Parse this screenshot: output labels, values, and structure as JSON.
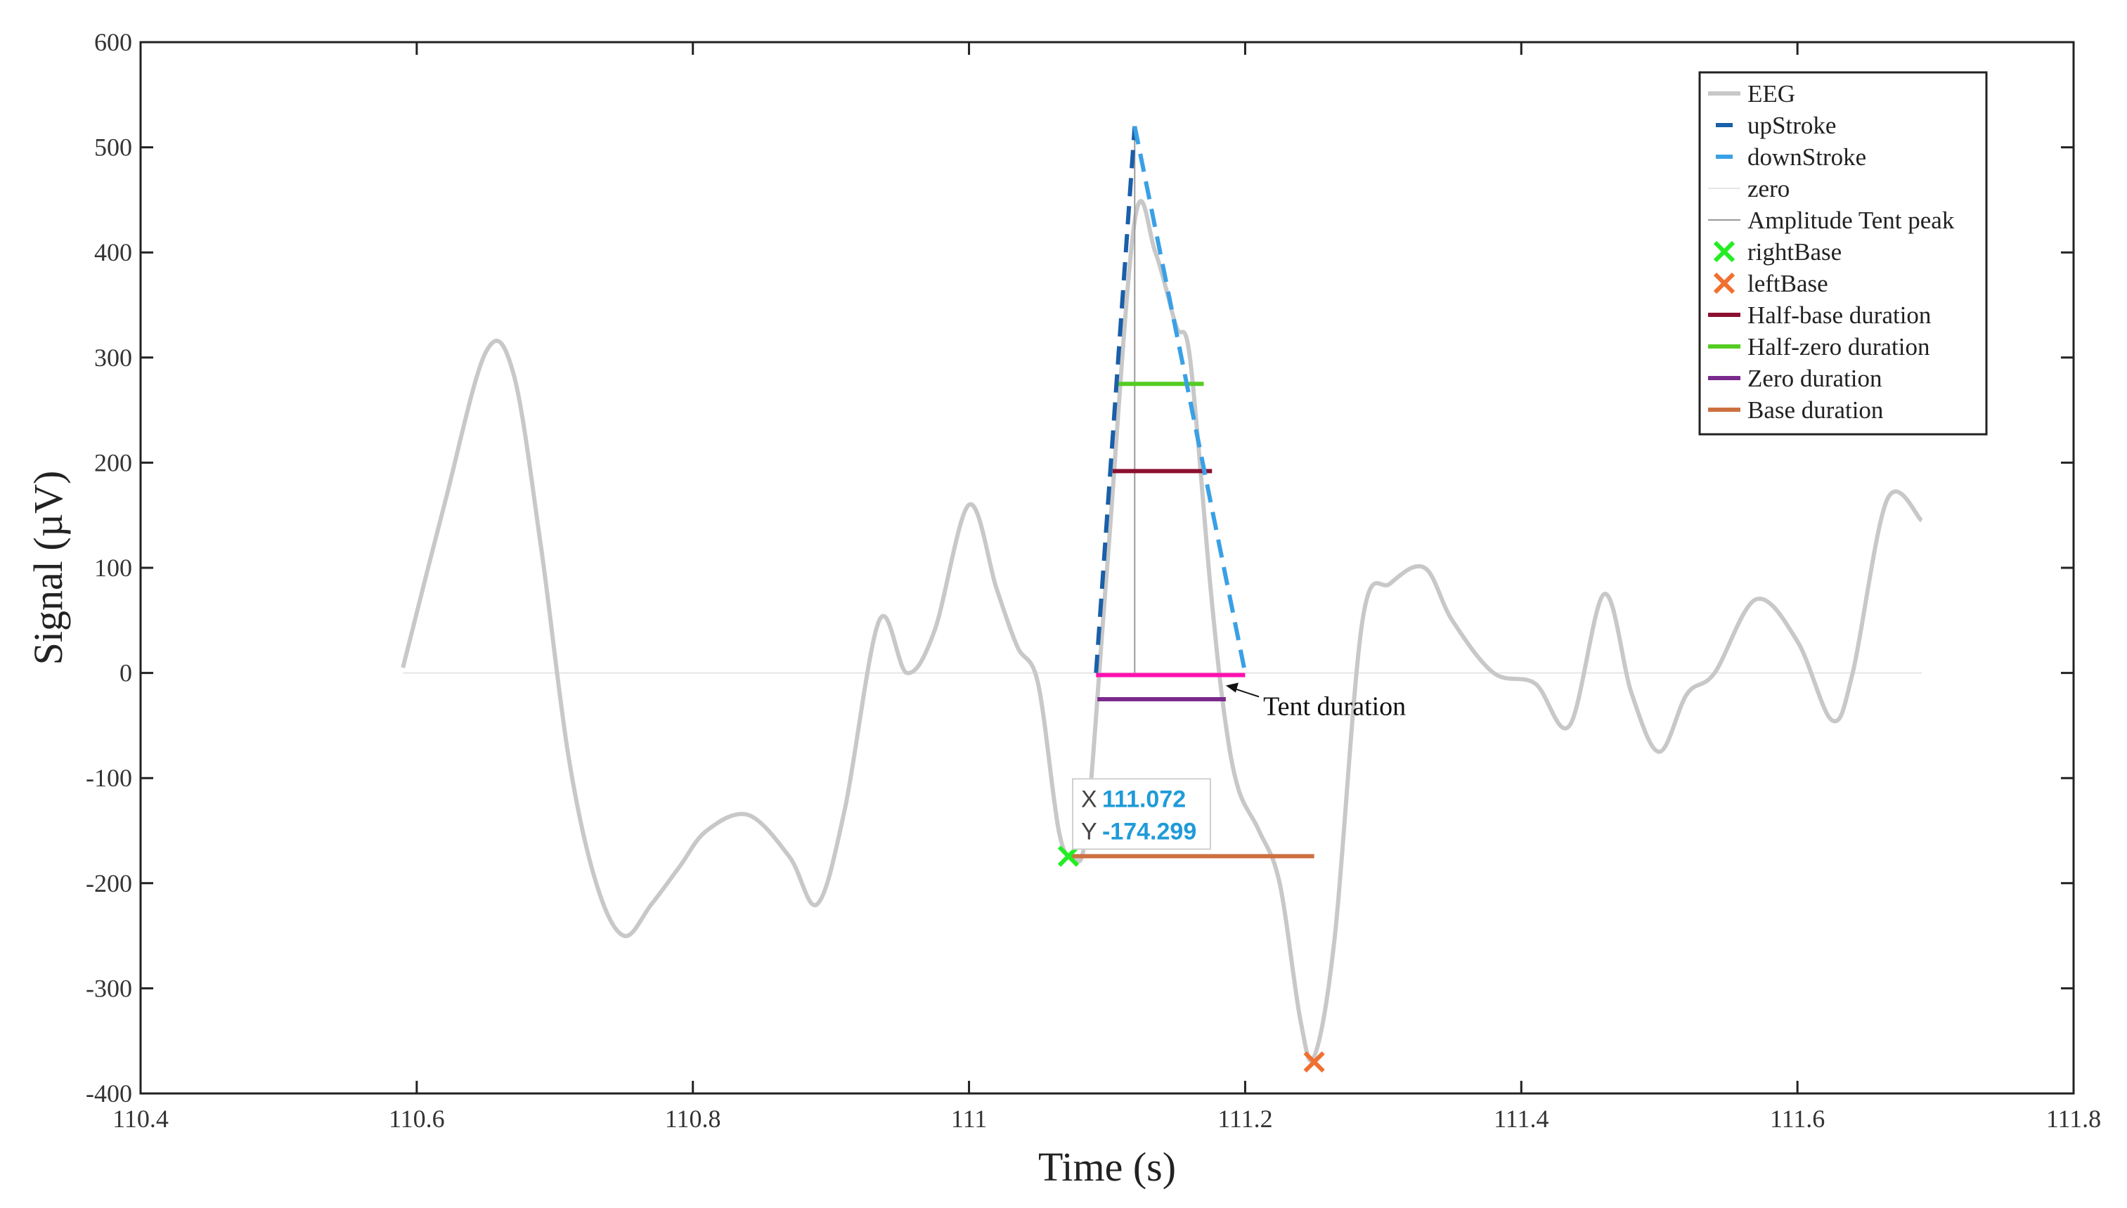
{
  "chart_data": {
    "type": "line",
    "title": "",
    "xlabel": "Time (s)",
    "ylabel": "Signal (µV)",
    "xlim": [
      110.4,
      111.8
    ],
    "ylim": [
      -400,
      600
    ],
    "x_ticks": [
      "110.4",
      "110.6",
      "110.8",
      "111",
      "111.2",
      "111.4",
      "111.6",
      "111.8"
    ],
    "y_ticks": [
      "600",
      "500",
      "400",
      "300",
      "200",
      "100",
      "0",
      "-100",
      "-200",
      "-300",
      "-400"
    ],
    "grid": false,
    "legend_position": "top-right",
    "series": [
      {
        "name": "EEG",
        "color": "#c8c8c8",
        "style": "solid",
        "points": [
          [
            110.59,
            5
          ],
          [
            110.62,
            160
          ],
          [
            110.65,
            305
          ],
          [
            110.67,
            285
          ],
          [
            110.69,
            120
          ],
          [
            110.71,
            -80
          ],
          [
            110.73,
            -200
          ],
          [
            110.75,
            -250
          ],
          [
            110.77,
            -220
          ],
          [
            110.79,
            -185
          ],
          [
            110.81,
            -150
          ],
          [
            110.84,
            -135
          ],
          [
            110.87,
            -175
          ],
          [
            110.89,
            -220
          ],
          [
            110.91,
            -130
          ],
          [
            110.935,
            50
          ],
          [
            110.955,
            0
          ],
          [
            110.975,
            40
          ],
          [
            111.0,
            160
          ],
          [
            111.02,
            80
          ],
          [
            111.035,
            25
          ],
          [
            111.05,
            -10
          ],
          [
            111.065,
            -150
          ],
          [
            111.075,
            -174
          ],
          [
            111.085,
            -150
          ],
          [
            111.1,
            100
          ],
          [
            111.12,
            430
          ],
          [
            111.135,
            400
          ],
          [
            111.15,
            330
          ],
          [
            111.16,
            300
          ],
          [
            111.175,
            80
          ],
          [
            111.185,
            -40
          ],
          [
            111.195,
            -110
          ],
          [
            111.21,
            -150
          ],
          [
            111.225,
            -200
          ],
          [
            111.24,
            -330
          ],
          [
            111.25,
            -365
          ],
          [
            111.265,
            -250
          ],
          [
            111.285,
            50
          ],
          [
            111.305,
            85
          ],
          [
            111.33,
            100
          ],
          [
            111.35,
            50
          ],
          [
            111.38,
            0
          ],
          [
            111.41,
            -10
          ],
          [
            111.435,
            -50
          ],
          [
            111.46,
            75
          ],
          [
            111.48,
            -20
          ],
          [
            111.5,
            -75
          ],
          [
            111.52,
            -20
          ],
          [
            111.54,
            0
          ],
          [
            111.57,
            70
          ],
          [
            111.6,
            30
          ],
          [
            111.625,
            -45
          ],
          [
            111.64,
            0
          ],
          [
            111.665,
            165
          ],
          [
            111.69,
            145
          ]
        ]
      },
      {
        "name": "upStroke",
        "color": "#1a5fa8",
        "style": "dashed",
        "points": [
          [
            111.092,
            0
          ],
          [
            111.12,
            520
          ]
        ]
      },
      {
        "name": "downStroke",
        "color": "#3aa0e6",
        "style": "dashed",
        "points": [
          [
            111.12,
            520
          ],
          [
            111.2,
            0
          ]
        ]
      },
      {
        "name": "zero",
        "color": "#e6e6e6",
        "style": "solid",
        "points": [
          [
            110.59,
            0
          ],
          [
            111.69,
            0
          ]
        ]
      },
      {
        "name": "Amplitude Tent peak",
        "color": "#999999",
        "style": "solid",
        "points": [
          [
            111.12,
            0
          ],
          [
            111.12,
            520
          ]
        ]
      },
      {
        "name": "rightBase",
        "color": "#22ee22",
        "style": "marker-x",
        "points": [
          [
            111.072,
            -174.299
          ]
        ]
      },
      {
        "name": "leftBase",
        "color": "#f07030",
        "style": "marker-x",
        "points": [
          [
            111.25,
            -370
          ]
        ]
      },
      {
        "name": "Half-base duration",
        "color": "#8b1030",
        "style": "solid",
        "points": [
          [
            111.104,
            192
          ],
          [
            111.176,
            192
          ]
        ]
      },
      {
        "name": "Half-zero duration",
        "color": "#55cc22",
        "style": "solid",
        "points": [
          [
            111.106,
            275
          ],
          [
            111.17,
            275
          ]
        ]
      },
      {
        "name": "Zero duration",
        "color": "#7a2a8c",
        "style": "solid",
        "points": [
          [
            111.093,
            -25
          ],
          [
            111.186,
            -25
          ]
        ]
      },
      {
        "name": "Base duration",
        "color": "#cc7040",
        "style": "solid",
        "points": [
          [
            111.072,
            -174.3
          ],
          [
            111.25,
            -174.3
          ]
        ]
      },
      {
        "name": "Tent duration",
        "color": "#ff10b0",
        "style": "solid",
        "points": [
          [
            111.092,
            -2
          ],
          [
            111.2,
            -2
          ]
        ]
      }
    ],
    "annotation": {
      "text": "Tent duration",
      "arrow_target": [
        111.186,
        -12
      ],
      "text_anchor": [
        111.21,
        -28
      ]
    },
    "datatip": {
      "x_label": "X",
      "x_value": "111.072",
      "y_label": "Y",
      "y_value": "-174.299",
      "anchor": [
        111.072,
        -174.299
      ]
    },
    "legend": [
      "EEG",
      "upStroke",
      "downStroke",
      "zero",
      "Amplitude Tent peak",
      "rightBase",
      "leftBase",
      "Half-base duration",
      "Half-zero duration",
      "Zero duration",
      "Base duration"
    ]
  }
}
